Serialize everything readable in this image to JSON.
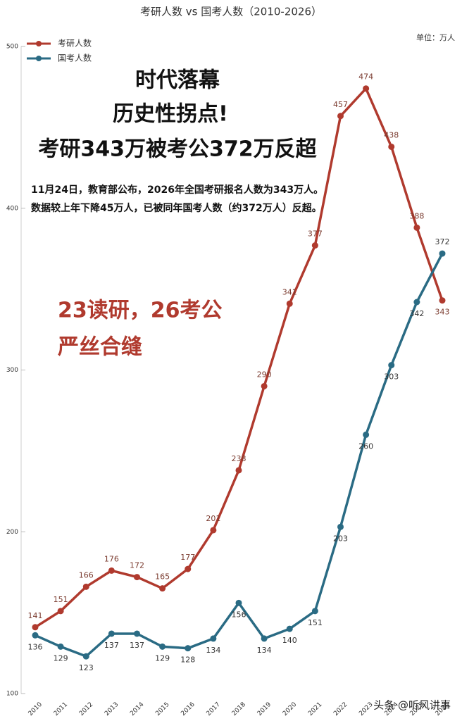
{
  "chart_data": {
    "type": "line",
    "title": "考研人数 vs 国考人数（2010-2026）",
    "unit": "单位：万人",
    "annotations": [
      "时代落幕",
      "历史性拐点!",
      "考研343万被考公372万反超",
      "11月24日，教育部公布，2026年全国考研报名人数为343万人。",
      "数据较上年下降45万人，已被同年国考人数（约372万人）反超。",
      "23读研，26考公",
      "严丝合缝",
      "头条 @听风讲事"
    ],
    "categories": [
      "2010",
      "2011",
      "2012",
      "2013",
      "2014",
      "2015",
      "2016",
      "2017",
      "2018",
      "2019",
      "2020",
      "2021",
      "2022",
      "2023",
      "2024",
      "2025",
      "2026"
    ],
    "series": [
      {
        "name": "考研人数",
        "color": "#b03a2e",
        "values": [
          141,
          151,
          166,
          176,
          172,
          165,
          177,
          201,
          238,
          290,
          341,
          377,
          457,
          474,
          438,
          388,
          343
        ]
      },
      {
        "name": "国考人数",
        "color": "#2a6b84",
        "values": [
          136,
          129,
          123,
          137,
          137,
          129,
          128,
          134,
          156,
          134,
          140,
          151,
          203,
          260,
          303,
          342,
          372
        ]
      }
    ],
    "ylim": [
      100,
      500
    ],
    "yticks": [
      100,
      200,
      300,
      400,
      500
    ],
    "legend": "upper-left"
  }
}
